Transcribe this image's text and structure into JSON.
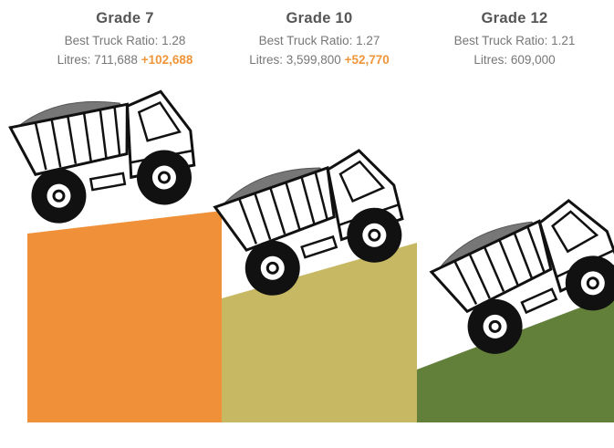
{
  "columns": [
    {
      "title": "Grade 7",
      "ratio": "Best Truck Ratio: 1.28",
      "litres": "Litres: 711,688",
      "bonus": "+102,688"
    },
    {
      "title": "Grade 10",
      "ratio": "Best Truck Ratio: 1.27",
      "litres": "Litres: 3,599,800",
      "bonus": "+52,770"
    },
    {
      "title": "Grade 12",
      "ratio": "Best Truck Ratio: 1.21",
      "litres": "Litres: 609,000"
    }
  ]
}
